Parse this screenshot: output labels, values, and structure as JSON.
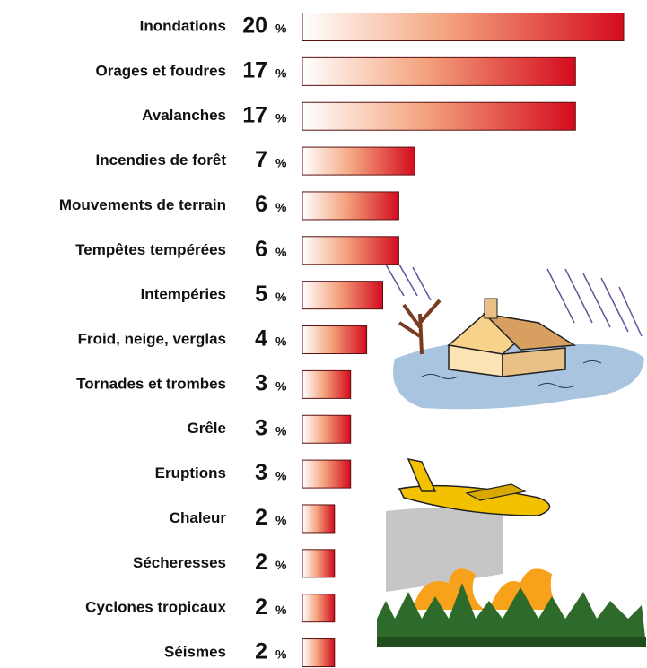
{
  "chart_data": {
    "type": "bar",
    "orientation": "horizontal",
    "unit": "%",
    "categories": [
      "Inondations",
      "Orages et foudres",
      "Avalanches",
      "Incendies de forêt",
      "Mouvements de terrain",
      "Tempêtes tempérées",
      "Intempéries",
      "Froid, neige, verglas",
      "Tornades et trombes",
      "Grêle",
      "Eruptions",
      "Chaleur",
      "Sécheresses",
      "Cyclones tropicaux",
      "Séismes"
    ],
    "values": [
      20,
      17,
      17,
      7,
      6,
      6,
      5,
      4,
      3,
      3,
      3,
      2,
      2,
      2,
      2
    ],
    "color": "#d40b1e"
  }
}
